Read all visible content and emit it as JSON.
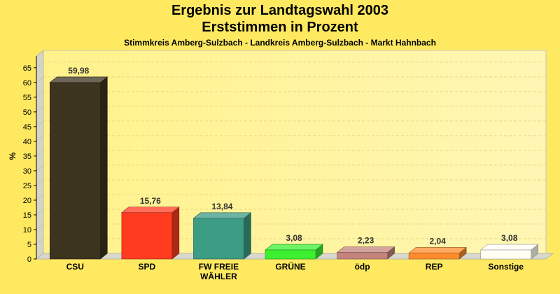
{
  "title": "Ergebnis zur Landtagswahl 2003",
  "subtitle": "Erststimmen in Prozent",
  "subtitle2": "Stimmkreis Amberg-Sulzbach - Landkreis Amberg-Sulzbach - Markt Hahnbach",
  "chart_data": {
    "type": "bar",
    "categories": [
      "CSU",
      "SPD",
      "FW FREIE WÄHLER",
      "GRÜNE",
      "ödp",
      "REP",
      "Sonstige"
    ],
    "category_lines": [
      [
        "CSU"
      ],
      [
        "SPD"
      ],
      [
        "FW FREIE",
        "WÄHLER"
      ],
      [
        "GRÜNE"
      ],
      [
        "ödp"
      ],
      [
        "REP"
      ],
      [
        "Sonstige"
      ]
    ],
    "values": [
      59.98,
      15.76,
      13.84,
      3.08,
      2.23,
      2.04,
      3.08
    ],
    "value_labels": [
      "59,98",
      "15,76",
      "13,84",
      "3,08",
      "2,23",
      "2,04",
      "3,08"
    ],
    "colors": [
      "#3D3420",
      "#FF3B20",
      "#3C9C84",
      "#3CF030",
      "#C4847C",
      "#FF8C2C",
      "#FFFFF4"
    ],
    "ylabel": "%",
    "ylim": [
      0,
      69
    ],
    "yticks": [
      0,
      5,
      10,
      15,
      20,
      25,
      30,
      35,
      40,
      45,
      50,
      55,
      60,
      65
    ],
    "grid": true,
    "legend": "none"
  }
}
